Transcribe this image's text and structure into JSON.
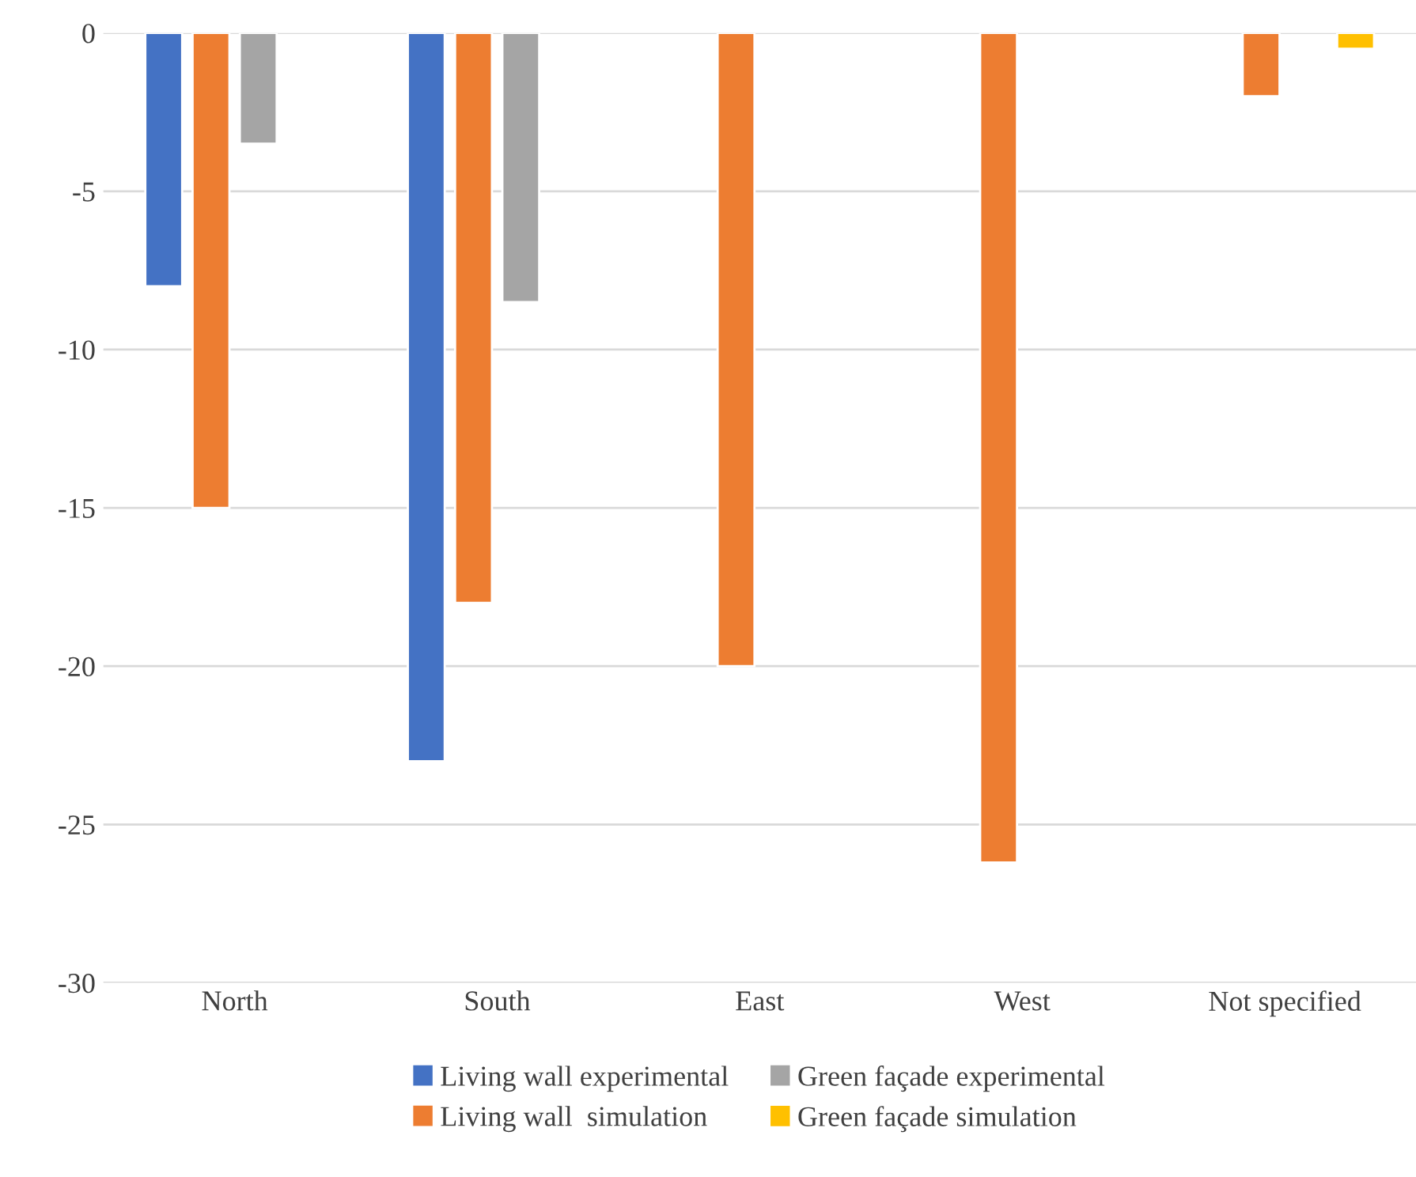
{
  "chart_data": {
    "type": "bar",
    "categories": [
      "North",
      "South",
      "East",
      "West",
      "Not specified"
    ],
    "series": [
      {
        "name": "Living wall experimental",
        "color": "#4472c4",
        "values": [
          -8,
          -23,
          null,
          null,
          null
        ]
      },
      {
        "name": "Living wall  simulation",
        "color": "#ed7d31",
        "values": [
          -15,
          -18,
          -20,
          -26.2,
          -2
        ]
      },
      {
        "name": "Green façade experimental",
        "color": "#a5a5a5",
        "values": [
          -3.5,
          -8.5,
          null,
          null,
          null
        ]
      },
      {
        "name": "Green façade simulation",
        "color": "#ffc000",
        "values": [
          null,
          null,
          null,
          null,
          -0.5
        ]
      }
    ],
    "ylim": [
      -30,
      0
    ],
    "yticks": [
      -30,
      -25,
      -20,
      -15,
      -10,
      -5,
      0
    ],
    "grid": "y",
    "legend": "bottom"
  }
}
